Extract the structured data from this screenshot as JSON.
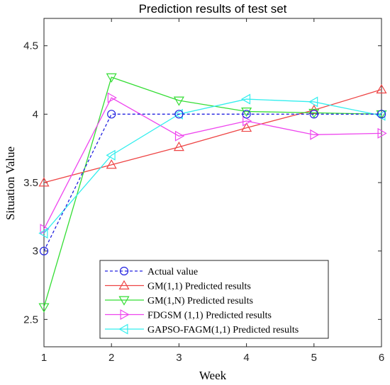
{
  "chart_data": {
    "type": "line",
    "title": "Prediction results of test set",
    "xlabel": "Week",
    "ylabel": "Situation Value",
    "xlim": [
      1,
      6
    ],
    "ylim": [
      2.3,
      4.7
    ],
    "x": [
      1,
      2,
      3,
      4,
      5,
      6
    ],
    "xticks": [
      "1",
      "2",
      "3",
      "4",
      "5",
      "6"
    ],
    "yticks": [
      2.5,
      3,
      3.5,
      4,
      4.5
    ],
    "ytick_labels": [
      "2.5",
      "3",
      "3.5",
      "4",
      "4.5"
    ],
    "grid": false,
    "legend_position": "bottom-center",
    "series": [
      {
        "name": "Actual value",
        "values": [
          3.0,
          4.0,
          4.0,
          4.0,
          4.0,
          4.0
        ],
        "color": "#2020e0",
        "dashed": true,
        "marker": "circle"
      },
      {
        "name": "GM(1,1) Predicted results",
        "values": [
          3.5,
          3.63,
          3.76,
          3.9,
          4.03,
          4.18
        ],
        "color": "#ee4444",
        "dashed": false,
        "marker": "triangle-up"
      },
      {
        "name": "GM(1,N) Predicted results",
        "values": [
          2.59,
          4.27,
          4.1,
          4.02,
          4.01,
          4.0
        ],
        "color": "#33dd33",
        "dashed": false,
        "marker": "triangle-down"
      },
      {
        "name": "FDGSM (1,1) Predicted results",
        "values": [
          3.16,
          4.12,
          3.84,
          3.95,
          3.85,
          3.86
        ],
        "color": "#ee44ee",
        "dashed": false,
        "marker": "triangle-right"
      },
      {
        "name": "GAPSO-FAGM(1,1) Predicted results",
        "values": [
          3.13,
          3.7,
          4.0,
          4.11,
          4.09,
          3.99
        ],
        "color": "#33eeee",
        "dashed": false,
        "marker": "triangle-left"
      }
    ]
  }
}
